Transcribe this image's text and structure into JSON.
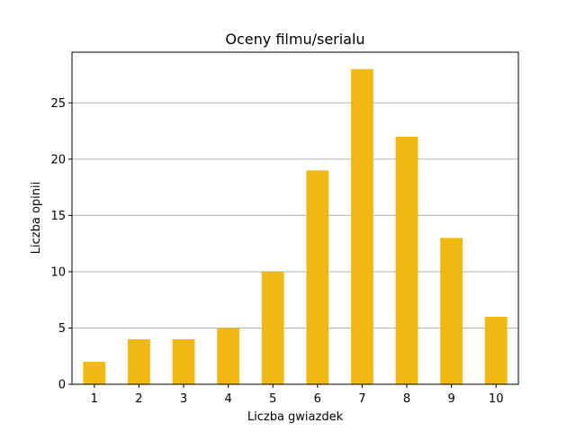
{
  "chart_data": {
    "type": "bar",
    "title": "Oceny filmu/serialu",
    "xlabel": "Liczba gwiazdek",
    "ylabel": "Liczba opinii",
    "categories": [
      "1",
      "2",
      "3",
      "4",
      "5",
      "6",
      "7",
      "8",
      "9",
      "10"
    ],
    "values": [
      2,
      4,
      4,
      5,
      10,
      19,
      28,
      22,
      13,
      6
    ],
    "ylim": [
      0,
      29.5
    ],
    "yticks": [
      0,
      5,
      10,
      15,
      20,
      25
    ],
    "grid": "horizontal",
    "legend": "none",
    "bar_color": "#f0b811",
    "grid_color": "#b0b0b0"
  }
}
